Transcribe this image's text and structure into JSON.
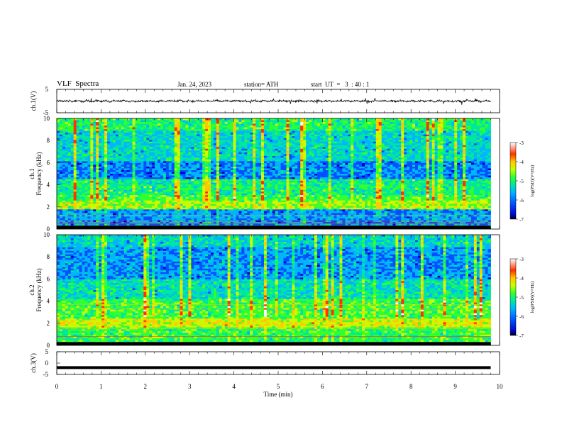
{
  "header": {
    "title": "VLF  Spectra",
    "date": "Jan. 24, 2023",
    "station": "station= ATH",
    "start": "start  UT  =   3  : 40 : 1"
  },
  "chart_data": [
    {
      "type": "line",
      "panel": "ch1-waveform",
      "ylabel": "ch.1(V)",
      "ylim": [
        -5,
        5
      ],
      "yticks": [
        5,
        -5
      ],
      "xlim": [
        0,
        10
      ],
      "line_color": "#000000",
      "description_level": "noisy waveform centred near 0 V, amplitude about ±1 V"
    },
    {
      "type": "heatmap",
      "panel": "ch1-spectrogram",
      "ylabel_line1": "ch.1",
      "ylabel_line2": "Frequency  (kHz)",
      "ylim": [
        0,
        10
      ],
      "yticks": [
        0,
        2,
        4,
        6,
        8,
        10
      ],
      "xlim": [
        0,
        9.8
      ],
      "colorbar": {
        "label": "log(PSD)(V²/Hz)",
        "range": [
          -7,
          -3
        ],
        "ticks": [
          -3,
          -4,
          -5,
          -6,
          -7
        ]
      }
    },
    {
      "type": "heatmap",
      "panel": "ch2-spectrogram",
      "ylabel_line1": "ch.2",
      "ylabel_line2": "Frequency  (kHz)",
      "ylim": [
        0,
        10
      ],
      "yticks": [
        0,
        2,
        4,
        6,
        8,
        10
      ],
      "xlim": [
        0,
        9.8
      ],
      "colorbar": {
        "label": "log(PSD)(V²/Hz)",
        "range": [
          -7,
          -3
        ],
        "ticks": [
          -3,
          -4,
          -5,
          -6,
          -7
        ]
      }
    },
    {
      "type": "line",
      "panel": "ch3-waveform",
      "ylabel": "ch.3(V)",
      "ylim": [
        -5,
        5
      ],
      "yticks": [
        5,
        0,
        -5
      ],
      "xlim": [
        0,
        10
      ],
      "values_constant": -2
    }
  ],
  "xaxis": {
    "label": "Time  (min)",
    "ticks": [
      0,
      1,
      2,
      3,
      4,
      5,
      6,
      7,
      8,
      9,
      10
    ]
  },
  "colors": {
    "cmap": [
      "#000000",
      "#0000c8",
      "#0050ff",
      "#00b4ff",
      "#00e6a0",
      "#30ff30",
      "#c8ff00",
      "#ffc800",
      "#ff3200",
      "#ffffff"
    ]
  }
}
